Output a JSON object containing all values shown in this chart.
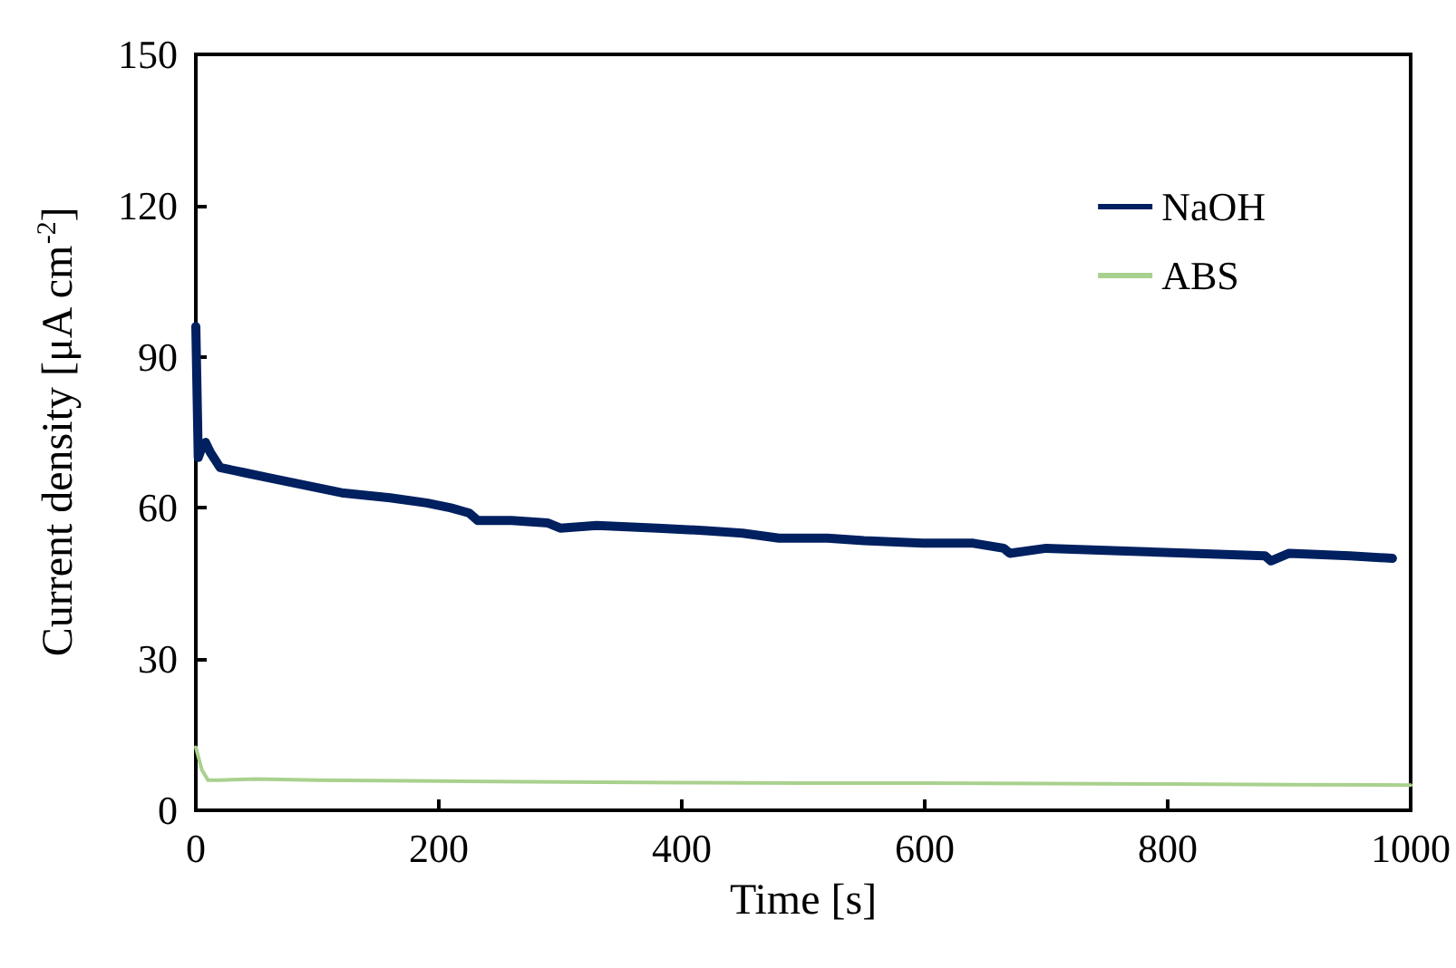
{
  "chart_data": {
    "type": "line",
    "xlabel": "Time [s]",
    "ylabel": "Current density [μA cm$^{-2}$]",
    "xlim": [
      0,
      1000
    ],
    "xticks": [
      0,
      200,
      400,
      600,
      800,
      1000
    ],
    "ylim": [
      0,
      150
    ],
    "yticks": [
      0,
      30,
      60,
      90,
      120,
      150
    ],
    "grid": false,
    "legend": "top right",
    "marker": "none",
    "line_style": "solid",
    "series": [
      {
        "name": "NaOH",
        "color": "#002060",
        "x": [
          0,
          2,
          5,
          8,
          12,
          20,
          40,
          60,
          80,
          100,
          120,
          160,
          190,
          210,
          225,
          232,
          260,
          290,
          300,
          330,
          380,
          420,
          450,
          480,
          520,
          550,
          600,
          640,
          665,
          670,
          700,
          760,
          820,
          880,
          885,
          900,
          950,
          985
        ],
        "values": [
          96,
          70,
          72,
          73,
          71,
          68,
          67,
          66,
          65,
          64,
          63,
          62,
          61,
          60,
          59,
          57.5,
          57.5,
          57,
          56,
          56.5,
          56,
          55.5,
          55,
          54,
          54,
          53.5,
          53,
          53,
          52,
          51,
          52,
          51.5,
          51,
          50.5,
          49.5,
          51,
          50.5,
          50
        ]
      },
      {
        "name": "ABS",
        "color": "#a9d18e",
        "x": [
          0,
          5,
          10,
          20,
          50,
          100,
          200,
          300,
          400,
          500,
          600,
          700,
          800,
          900,
          1000
        ],
        "values": [
          12.5,
          8,
          6,
          6,
          6.2,
          6,
          5.8,
          5.6,
          5.5,
          5.4,
          5.4,
          5.3,
          5.2,
          5.1,
          5
        ]
      }
    ]
  }
}
